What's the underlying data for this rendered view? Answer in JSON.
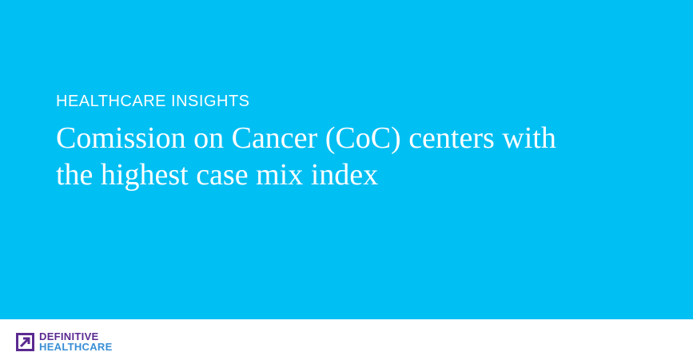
{
  "header": {
    "eyebrow": "HEALTHCARE INSIGHTS",
    "title_lines": [
      "Comission on Cancer (CoC) centers with",
      "the highest case mix index"
    ]
  },
  "footer": {
    "logo_line1": "DEFINITIVE",
    "logo_line2": "HEALTHCARE"
  }
}
